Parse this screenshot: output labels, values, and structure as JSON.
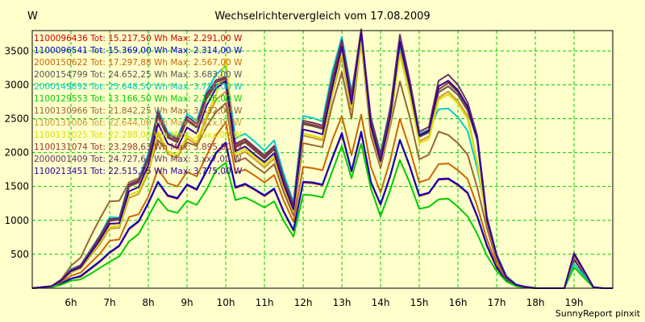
{
  "chart_data": {
    "type": "line",
    "title": "Wechselrichtervergleich vom 17.08.2009",
    "ylabel": "W",
    "xlabel": "",
    "footer": "SunnyReport pinxit",
    "xlim": [
      5.0,
      20.0
    ],
    "ylim": [
      0,
      3800
    ],
    "x_ticks": [
      6,
      7,
      8,
      9,
      10,
      11,
      12,
      13,
      14,
      15,
      16,
      17,
      18,
      19
    ],
    "x_tick_labels": [
      "6h",
      "7h",
      "8h",
      "9h",
      "10h",
      "11h",
      "12h",
      "13h",
      "14h",
      "15h",
      "16h",
      "17h",
      "18h",
      "19h"
    ],
    "y_ticks": [
      500,
      1000,
      1500,
      2000,
      2500,
      3000,
      3500
    ],
    "y_tick_labels": [
      "500",
      "1000",
      "1500",
      "2000",
      "2500",
      "3000",
      "3500"
    ],
    "grid": true,
    "legend_position": "top-left",
    "colors": {
      "background": "#ffffcc",
      "grid": "#00cc00",
      "plot_border": "#000000"
    },
    "x": [
      5.0,
      5.5,
      5.75,
      6.0,
      6.25,
      6.5,
      6.75,
      7.0,
      7.25,
      7.5,
      7.75,
      8.0,
      8.25,
      8.5,
      8.75,
      9.0,
      9.25,
      9.5,
      9.75,
      10.0,
      10.25,
      10.5,
      10.75,
      11.0,
      11.25,
      11.5,
      11.75,
      12.0,
      12.25,
      12.5,
      12.75,
      13.0,
      13.25,
      13.5,
      13.75,
      14.0,
      14.25,
      14.5,
      14.75,
      15.0,
      15.25,
      15.5,
      15.75,
      16.0,
      16.25,
      16.5,
      16.75,
      17.0,
      17.25,
      17.5,
      17.75,
      18.0,
      18.25,
      18.5,
      18.75,
      19.0,
      19.25,
      19.5,
      19.75,
      20.0
    ],
    "series": [
      {
        "name": "1100096436",
        "label": "1100096436 Tot: 15.217,50 Wh Max: 2.291,00 W",
        "color": "#cc0000",
        "values": [
          0,
          20,
          70,
          140,
          170,
          280,
          390,
          520,
          620,
          870,
          980,
          1250,
          1560,
          1360,
          1320,
          1520,
          1450,
          1720,
          1990,
          2130,
          1480,
          1530,
          1450,
          1360,
          1460,
          1120,
          850,
          1560,
          1550,
          1520,
          1910,
          2270,
          1720,
          2290,
          1560,
          1230,
          1650,
          2180,
          1800,
          1360,
          1400,
          1600,
          1610,
          1520,
          1400,
          1050,
          620,
          300,
          120,
          40,
          15,
          0,
          0,
          0,
          0,
          420,
          220,
          15,
          0,
          0
        ]
      },
      {
        "name": "1100096541",
        "label": "1100096541 Tot: 15.369,00 Wh Max: 2.314,00 W",
        "color": "#0000cc",
        "values": [
          0,
          20,
          70,
          140,
          180,
          290,
          400,
          530,
          630,
          880,
          990,
          1260,
          1570,
          1370,
          1330,
          1530,
          1460,
          1730,
          2000,
          2150,
          1490,
          1540,
          1460,
          1370,
          1470,
          1130,
          860,
          1570,
          1560,
          1530,
          1920,
          2290,
          1730,
          2310,
          1570,
          1240,
          1660,
          2190,
          1810,
          1370,
          1410,
          1610,
          1620,
          1530,
          1410,
          1060,
          630,
          310,
          120,
          40,
          15,
          0,
          0,
          0,
          0,
          430,
          230,
          15,
          0,
          0
        ]
      },
      {
        "name": "2000150622",
        "label": "2000150622 Tot: 17.297,88 Wh Max: 2.567,00 W",
        "color": "#cc6600",
        "values": [
          0,
          25,
          90,
          180,
          230,
          370,
          510,
          700,
          720,
          1050,
          1090,
          1350,
          1760,
          1550,
          1500,
          1720,
          1650,
          1950,
          2250,
          2450,
          1700,
          1750,
          1660,
          1560,
          1670,
          1290,
          980,
          1790,
          1770,
          1740,
          2180,
          2540,
          1960,
          2560,
          1790,
          1410,
          1890,
          2500,
          2060,
          1560,
          1610,
          1830,
          1840,
          1740,
          1610,
          1210,
          720,
          350,
          140,
          45,
          15,
          0,
          0,
          0,
          0,
          470,
          250,
          15,
          0,
          0
        ]
      },
      {
        "name": "2000154799",
        "label": "2000154799 Tot: 24.652,25 Wh Max: 3.683,00 W",
        "color": "#555555",
        "values": [
          0,
          30,
          120,
          260,
          330,
          530,
          740,
          990,
          1010,
          1500,
          1560,
          1900,
          2540,
          2220,
          2150,
          2470,
          2370,
          2790,
          3000,
          3060,
          2080,
          2150,
          2030,
          1910,
          2050,
          1580,
          1200,
          2420,
          2390,
          2350,
          3050,
          3620,
          2810,
          3680,
          2450,
          1930,
          2600,
          3560,
          2950,
          2230,
          2300,
          2890,
          2980,
          2850,
          2620,
          2190,
          1020,
          480,
          160,
          50,
          20,
          0,
          0,
          0,
          0,
          500,
          260,
          15,
          0,
          0
        ]
      },
      {
        "name": "2000149892",
        "label": "2000149892 Tot: 25.648,50 Wh Max: 3.710,00 W",
        "color": "#00cccc",
        "values": [
          0,
          30,
          130,
          280,
          340,
          560,
          780,
          1050,
          1040,
          1560,
          1620,
          1980,
          2640,
          2300,
          2230,
          2570,
          2470,
          2900,
          3150,
          3280,
          2210,
          2280,
          2160,
          2030,
          2180,
          1680,
          1270,
          2540,
          2510,
          2460,
          3190,
          3710,
          2900,
          3700,
          2520,
          1990,
          2670,
          3530,
          2880,
          2280,
          2340,
          2640,
          2650,
          2520,
          2320,
          1760,
          1050,
          500,
          180,
          60,
          20,
          0,
          0,
          0,
          0,
          360,
          190,
          15,
          0,
          0
        ]
      },
      {
        "name": "1100129553",
        "label": "1100129553 Tot: 13.166,50 Wh Max: 2.136,00 W",
        "color": "#00cc00",
        "values": [
          0,
          15,
          50,
          110,
          130,
          210,
          300,
          390,
          470,
          690,
          800,
          1060,
          1320,
          1150,
          1110,
          1290,
          1230,
          1450,
          1740,
          1850,
          1300,
          1340,
          1270,
          1190,
          1280,
          990,
          760,
          1380,
          1370,
          1340,
          1720,
          2100,
          1620,
          2130,
          1470,
          1060,
          1450,
          1890,
          1560,
          1170,
          1200,
          1310,
          1320,
          1200,
          1060,
          800,
          480,
          250,
          100,
          30,
          10,
          0,
          0,
          0,
          0,
          310,
          160,
          10,
          0,
          0
        ]
      },
      {
        "name": "1100130966",
        "label": "1100130966 Tot: 21.842,25 Wh Max: 3.632,00 W",
        "color": "#996633",
        "values": [
          0,
          30,
          130,
          330,
          450,
          750,
          1030,
          1280,
          1290,
          1560,
          1620,
          1750,
          2180,
          2020,
          1960,
          2150,
          2100,
          2380,
          2600,
          2730,
          1860,
          1920,
          1800,
          1700,
          1830,
          1410,
          1070,
          2140,
          2110,
          2080,
          2700,
          3190,
          2500,
          3630,
          2250,
          1770,
          2390,
          3050,
          2530,
          1900,
          1970,
          2310,
          2260,
          2140,
          1970,
          1480,
          880,
          410,
          150,
          45,
          15,
          0,
          0,
          0,
          0,
          450,
          240,
          15,
          0,
          0
        ]
      },
      {
        "name": "1100131006",
        "label": "1100131006 Tot: 22.644,00 Wh Max: 3.61x,00 W",
        "color": "#cc9933",
        "values": [
          0,
          25,
          110,
          230,
          290,
          470,
          650,
          880,
          890,
          1330,
          1390,
          1700,
          2270,
          1980,
          1920,
          2210,
          2120,
          2500,
          2780,
          2900,
          1940,
          2010,
          1900,
          1780,
          1910,
          1480,
          1120,
          2250,
          2220,
          2180,
          2850,
          3400,
          2620,
          3610,
          2330,
          1820,
          2430,
          3480,
          2890,
          2170,
          2240,
          2810,
          2900,
          2760,
          2540,
          1850,
          960,
          450,
          160,
          50,
          20,
          0,
          0,
          0,
          0,
          480,
          250,
          15,
          0,
          0
        ]
      },
      {
        "name": "1100131025",
        "label": "1100131025 Tot: 22.288,00 Wh Max: 3.6xx,00 W",
        "color": "#dddd00",
        "values": [
          0,
          25,
          110,
          240,
          300,
          490,
          680,
          910,
          920,
          1370,
          1430,
          1740,
          2320,
          2020,
          1960,
          2250,
          2160,
          2540,
          2860,
          3390,
          1980,
          2050,
          1940,
          1820,
          1950,
          1500,
          1140,
          2280,
          2250,
          2210,
          2880,
          3480,
          2670,
          3640,
          2370,
          1860,
          2480,
          3440,
          2850,
          2140,
          2200,
          2780,
          2860,
          2720,
          2500,
          1850,
          990,
          460,
          170,
          50,
          20,
          0,
          0,
          0,
          0,
          490,
          250,
          15,
          0,
          0
        ]
      },
      {
        "name": "1100131074",
        "label": "1100131074 Tot: 23.298,63 Wh Max: 3.895,00 W",
        "color": "#993333",
        "values": [
          0,
          30,
          120,
          260,
          330,
          540,
          750,
          1000,
          1020,
          1510,
          1570,
          1910,
          2560,
          2240,
          2170,
          2490,
          2390,
          2820,
          3040,
          3090,
          2100,
          2170,
          2050,
          1930,
          2070,
          1600,
          1210,
          2440,
          2410,
          2370,
          3080,
          3640,
          2830,
          3820,
          2480,
          1950,
          2620,
          3610,
          2990,
          2260,
          2330,
          2930,
          3030,
          2890,
          2660,
          2210,
          1030,
          480,
          160,
          50,
          20,
          0,
          0,
          0,
          0,
          510,
          270,
          15,
          0,
          0
        ]
      },
      {
        "name": "2000001409",
        "label": "2000001409 Tot: 24.727,63 Wh Max: 3.xx7,00 W",
        "color": "#663366",
        "values": [
          0,
          30,
          120,
          270,
          340,
          550,
          770,
          1020,
          1030,
          1530,
          1590,
          1940,
          2600,
          2270,
          2200,
          2530,
          2430,
          2860,
          3070,
          3110,
          2130,
          2200,
          2080,
          1960,
          2100,
          1620,
          1230,
          2470,
          2440,
          2400,
          3110,
          3660,
          2850,
          3800,
          2510,
          1970,
          2650,
          3740,
          3080,
          2310,
          2380,
          3060,
          3150,
          3000,
          2740,
          2250,
          1050,
          490,
          170,
          50,
          20,
          0,
          0,
          0,
          0,
          520,
          270,
          15,
          0,
          0
        ]
      },
      {
        "name": "1100213451",
        "label": "1100213451 Tot: 22.515,75 Wh Max: 3.775,00 W",
        "color": "#330099",
        "values": [
          0,
          30,
          110,
          250,
          310,
          510,
          710,
          950,
          960,
          1430,
          1490,
          1820,
          2430,
          2130,
          2070,
          2370,
          2280,
          2690,
          2950,
          3050,
          2020,
          2090,
          1970,
          1860,
          1990,
          1530,
          1160,
          2340,
          2310,
          2270,
          2950,
          3560,
          2720,
          3770,
          2390,
          1870,
          2520,
          3640,
          3000,
          2250,
          2320,
          2980,
          3060,
          2920,
          2680,
          2180,
          1000,
          470,
          160,
          50,
          20,
          0,
          0,
          0,
          0,
          500,
          260,
          15,
          0,
          0
        ]
      }
    ]
  }
}
